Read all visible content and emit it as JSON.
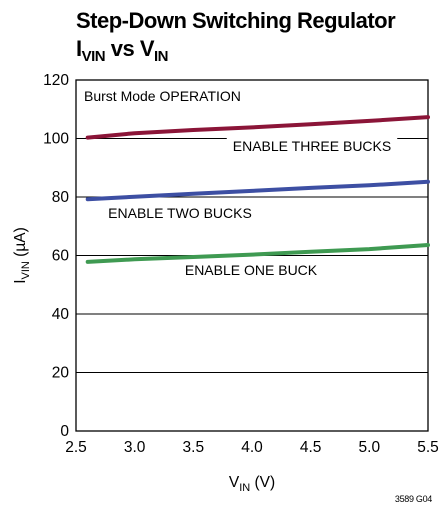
{
  "chart_data": {
    "type": "line",
    "title_line1": "Step-Down Switching Regulator",
    "title_line2": {
      "a": "I",
      "a_sub": "VIN",
      "mid": " vs V",
      "b_sub": "IN"
    },
    "xlabel": {
      "main": "V",
      "sub": "IN",
      "unit": " (V)"
    },
    "ylabel": {
      "main": "I",
      "sub": "VIN",
      "unit": " (µA)"
    },
    "xlim": [
      2.5,
      5.5
    ],
    "ylim": [
      0,
      120
    ],
    "xticks": [
      "2.5",
      "3.0",
      "3.5",
      "4.0",
      "4.5",
      "5.0",
      "5.5"
    ],
    "yticks": [
      "0",
      "20",
      "40",
      "60",
      "80",
      "100",
      "120"
    ],
    "grid": true,
    "annotations": [
      "Burst Mode OPERATION",
      "ENABLE THREE BUCKS",
      "ENABLE TWO BUCKS",
      "ENABLE ONE BUCK"
    ],
    "x": [
      2.6,
      3.0,
      3.5,
      4.0,
      4.5,
      5.0,
      5.5
    ],
    "series": [
      {
        "color": "#8b1538",
        "values": [
          100.3,
          101.8,
          102.9,
          103.8,
          104.9,
          106.0,
          107.3
        ]
      },
      {
        "color": "#3d4fa3",
        "values": [
          79.2,
          80.1,
          81.1,
          82.1,
          83.1,
          84.0,
          85.2
        ]
      },
      {
        "color": "#3f9a52",
        "values": [
          57.8,
          58.7,
          59.5,
          60.3,
          61.3,
          62.2,
          63.6
        ]
      }
    ]
  },
  "figure_code": "3589 G04"
}
